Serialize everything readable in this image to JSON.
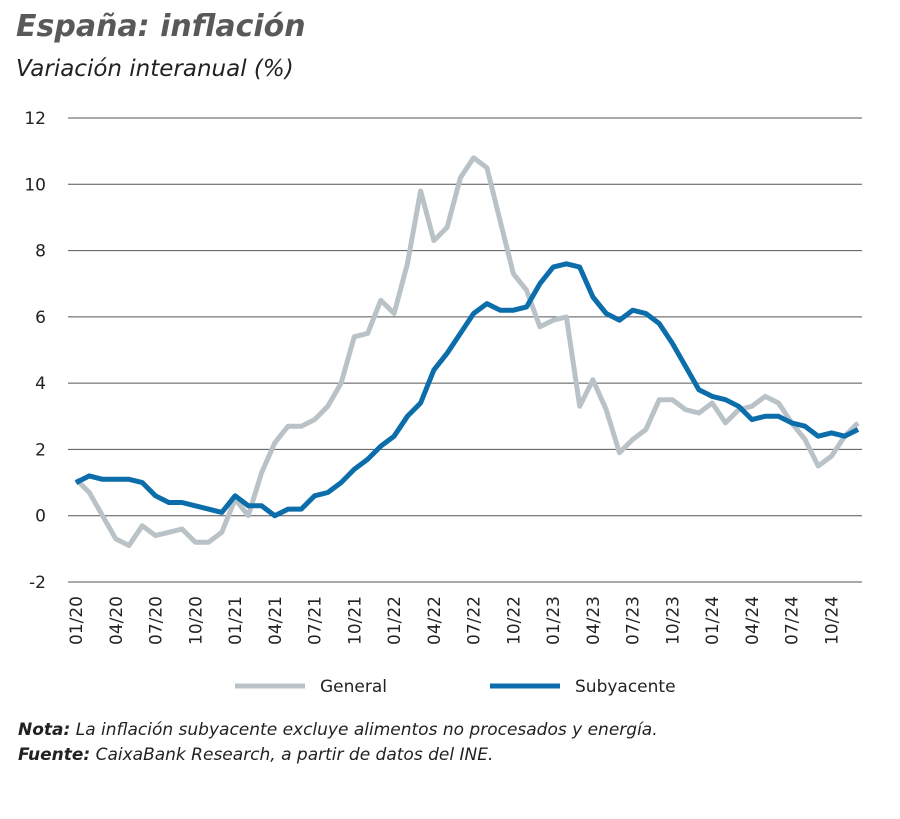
{
  "chart_data": {
    "type": "line",
    "title": "España: inflación",
    "subtitle": "Variación interanual (%)",
    "categories": [
      "01/20",
      null,
      null,
      "04/20",
      null,
      null,
      "07/20",
      null,
      null,
      "10/20",
      null,
      null,
      "01/21",
      null,
      null,
      "04/21",
      null,
      null,
      "07/21",
      null,
      null,
      "10/21",
      null,
      null,
      "01/22",
      null,
      null,
      "04/22",
      null,
      null,
      "07/22",
      null,
      null,
      "10/22",
      null,
      null,
      "01/23",
      null,
      null,
      "04/23",
      null,
      null,
      "07/23",
      null,
      null,
      "10/23",
      null,
      null,
      "01/24",
      null,
      null,
      "04/24",
      null,
      null,
      "07/24",
      null,
      null,
      "10/24",
      null,
      null
    ],
    "series": [
      {
        "name": "General",
        "color": "#b9c3c7",
        "values": [
          1.1,
          0.7,
          0.0,
          -0.7,
          -0.9,
          -0.3,
          -0.6,
          -0.5,
          -0.4,
          -0.8,
          -0.8,
          -0.5,
          0.5,
          0.0,
          1.3,
          2.2,
          2.7,
          2.7,
          2.9,
          3.3,
          4.0,
          5.4,
          5.5,
          6.5,
          6.1,
          7.6,
          9.8,
          8.3,
          8.7,
          10.2,
          10.8,
          10.5,
          8.9,
          7.3,
          6.8,
          5.7,
          5.9,
          6.0,
          3.3,
          4.1,
          3.2,
          1.9,
          2.3,
          2.6,
          3.5,
          3.5,
          3.2,
          3.1,
          3.4,
          2.8,
          3.2,
          3.3,
          3.6,
          3.4,
          2.8,
          2.3,
          1.5,
          1.8,
          2.4,
          2.8
        ]
      },
      {
        "name": "Subyacente",
        "color": "#0b6daa",
        "values": [
          1.0,
          1.2,
          1.1,
          1.1,
          1.1,
          1.0,
          0.6,
          0.4,
          0.4,
          0.3,
          0.2,
          0.1,
          0.6,
          0.3,
          0.3,
          0.0,
          0.2,
          0.2,
          0.6,
          0.7,
          1.0,
          1.4,
          1.7,
          2.1,
          2.4,
          3.0,
          3.4,
          4.4,
          4.9,
          5.5,
          6.1,
          6.4,
          6.2,
          6.2,
          6.3,
          7.0,
          7.5,
          7.6,
          7.5,
          6.6,
          6.1,
          5.9,
          6.2,
          6.1,
          5.8,
          5.2,
          4.5,
          3.8,
          3.6,
          3.5,
          3.3,
          2.9,
          3.0,
          3.0,
          2.8,
          2.7,
          2.4,
          2.5,
          2.4,
          2.6
        ]
      }
    ],
    "ylim": [
      -2,
      12
    ],
    "yticks": [
      -2,
      0,
      2,
      4,
      6,
      8,
      10,
      12
    ],
    "grid": true,
    "legend": "bottom"
  },
  "notes": [
    {
      "label": "Nota:",
      "text": " La inflación subyacente excluye alimentos no procesados y energía."
    },
    {
      "label": "Fuente:",
      "text": " CaixaBank Research, a partir de datos del INE."
    }
  ]
}
